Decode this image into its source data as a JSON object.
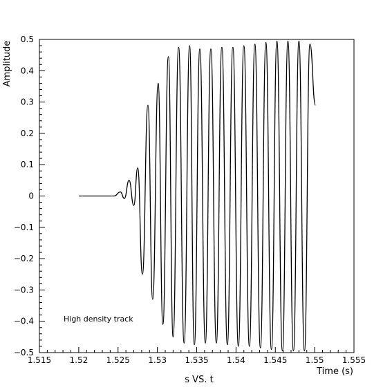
{
  "chart_data": {
    "type": "line",
    "xlabel": "Time (s)",
    "ylabel": "Amplitude",
    "footer": "s VS. t",
    "annotation": "High density track",
    "xlim": [
      1.515,
      1.555
    ],
    "ylim": [
      -0.5,
      0.5
    ],
    "xticks": [
      "1.515",
      "1.52",
      "1.525",
      "1.53",
      "1.535",
      "1.54",
      "1.545",
      "1.55",
      "1.555"
    ],
    "yticks": [
      "-0.5",
      "-0.4",
      "-0.3",
      "-0.2",
      "-0.1",
      "0",
      "0.1",
      "0.2",
      "0.3",
      "0.4",
      "0.5"
    ],
    "grid": false,
    "line_color": "#000000",
    "series": [
      {
        "x": [
          1.52,
          1.5245,
          1.5253,
          1.5258,
          1.5264,
          1.527,
          1.5275,
          1.5281,
          1.5288,
          1.5294,
          1.5301,
          1.5307,
          1.5314,
          1.532,
          1.5327,
          1.5334,
          1.5341,
          1.5347,
          1.5354,
          1.5361,
          1.5368,
          1.5375,
          1.5382,
          1.5389,
          1.5396,
          1.5403,
          1.541,
          1.5417,
          1.5424,
          1.5431,
          1.5438,
          1.5445,
          1.5452,
          1.5459,
          1.5466,
          1.5473,
          1.548,
          1.5487,
          1.5494,
          1.5501
        ],
        "y": [
          0.0,
          0.0,
          0.013,
          -0.008,
          0.05,
          -0.03,
          0.09,
          -0.25,
          0.29,
          -0.33,
          0.36,
          -0.41,
          0.445,
          -0.45,
          0.475,
          -0.47,
          0.48,
          -0.475,
          0.47,
          -0.47,
          0.47,
          -0.47,
          0.475,
          -0.475,
          0.475,
          -0.48,
          0.48,
          -0.48,
          0.485,
          -0.485,
          0.49,
          -0.49,
          0.495,
          -0.495,
          0.495,
          -0.495,
          0.495,
          -0.495,
          0.485,
          0.29
        ]
      }
    ]
  }
}
